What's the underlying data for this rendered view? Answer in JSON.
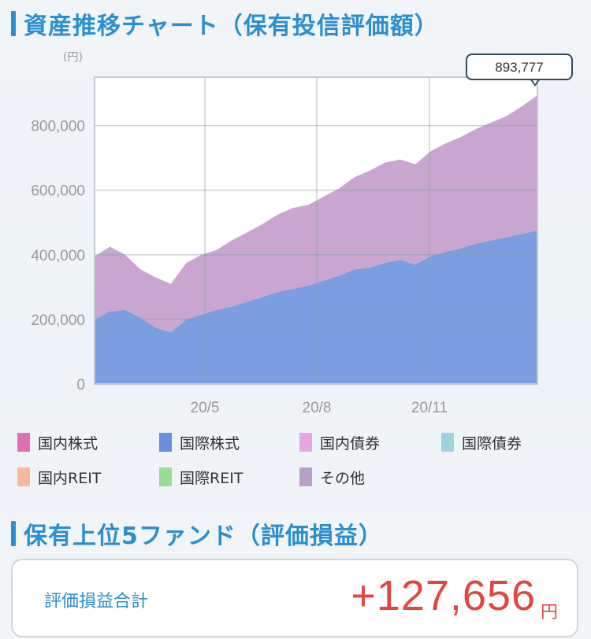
{
  "header": {
    "title": "資産推移チャート（保有投信評価額）"
  },
  "chart": {
    "unit": "(円)",
    "callout_value": "893,777",
    "y_ticks": [
      "800,000",
      "600,000",
      "400,000",
      "200,000",
      "0"
    ],
    "x_ticks": [
      "20/5",
      "20/8",
      "20/11"
    ]
  },
  "chart_data": {
    "type": "area",
    "stacked": true,
    "ylim": [
      0,
      950000
    ],
    "yticks": [
      0,
      200000,
      400000,
      600000,
      800000
    ],
    "xticks": [
      "20/5",
      "20/8",
      "20/11"
    ],
    "grid": true,
    "series": [
      {
        "name": "国際株式",
        "color": "#7c9ee0",
        "values": [
          200000,
          225000,
          230000,
          205000,
          175000,
          160000,
          200000,
          215000,
          230000,
          240000,
          255000,
          270000,
          285000,
          295000,
          305000,
          320000,
          335000,
          355000,
          360000,
          375000,
          385000,
          370000,
          395000,
          410000,
          420000,
          435000,
          445000,
          455000,
          465000,
          475000
        ]
      },
      {
        "name": "その他",
        "color": "#c9a6cf",
        "values": [
          195000,
          200000,
          170000,
          150000,
          155000,
          150000,
          175000,
          185000,
          185000,
          205000,
          215000,
          225000,
          240000,
          250000,
          250000,
          260000,
          270000,
          285000,
          300000,
          310000,
          310000,
          310000,
          325000,
          335000,
          345000,
          355000,
          365000,
          375000,
          395000,
          418777
        ]
      }
    ]
  },
  "legend": [
    {
      "label": "国内株式",
      "color": "#e070b0"
    },
    {
      "label": "国際株式",
      "color": "#6a8fdc"
    },
    {
      "label": "国内債券",
      "color": "#e6a7df"
    },
    {
      "label": "国際債券",
      "color": "#9dd3df"
    },
    {
      "label": "国内REIT",
      "color": "#f6b99e"
    },
    {
      "label": "国際REIT",
      "color": "#98dc98"
    },
    {
      "label": "その他",
      "color": "#b9a0c9"
    }
  ],
  "section2": {
    "title": "保有上位5ファンド（評価損益）"
  },
  "summary": {
    "label": "評価損益合計",
    "value": "+127,656",
    "unit": "円"
  }
}
